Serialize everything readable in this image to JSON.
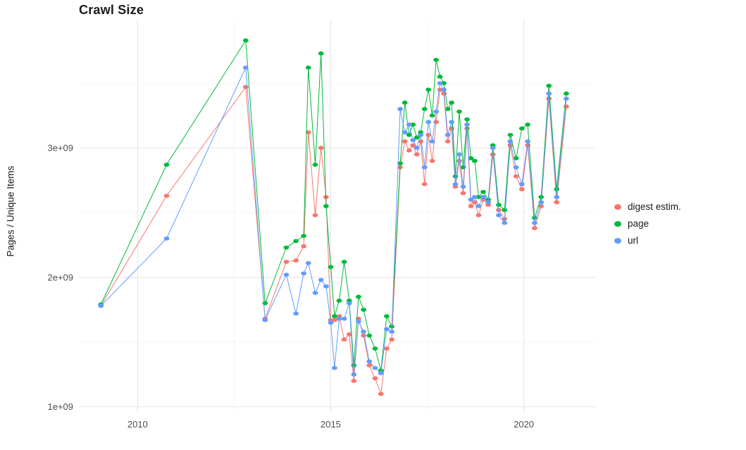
{
  "chart_data": {
    "type": "line",
    "title": "Crawl Size",
    "xlabel": "",
    "ylabel": "Pages / Unique Items",
    "legend_position": "right",
    "grid": true,
    "grid_major_color": "#e5e5e5",
    "grid_minor_color": "#f2f2f2",
    "tick_color": "#4d4d4d",
    "xlim": [
      2008.48,
      2021.85
    ],
    "ylim": [
      960000000.0,
      3990000000.0
    ],
    "x_ticks": [
      {
        "value": 2010,
        "label": "2010"
      },
      {
        "value": 2015,
        "label": "2015"
      },
      {
        "value": 2020,
        "label": "2020"
      }
    ],
    "y_ticks": [
      {
        "value": 1000000000.0,
        "label": "1e+09"
      },
      {
        "value": 2000000000.0,
        "label": "2e+09"
      },
      {
        "value": 3000000000.0,
        "label": "3e+09"
      }
    ],
    "x_minor": [
      2012.5,
      2017.5
    ],
    "y_minor": [
      1500000000.0,
      2500000000.0,
      3500000000.0
    ],
    "x": [
      2009.05,
      2010.75,
      2012.8,
      2013.3,
      2013.85,
      2014.1,
      2014.3,
      2014.42,
      2014.6,
      2014.75,
      2014.88,
      2015.0,
      2015.1,
      2015.22,
      2015.35,
      2015.48,
      2015.6,
      2015.72,
      2015.85,
      2016.0,
      2016.15,
      2016.3,
      2016.45,
      2016.58,
      2016.8,
      2016.92,
      2017.03,
      2017.13,
      2017.23,
      2017.33,
      2017.43,
      2017.53,
      2017.63,
      2017.73,
      2017.83,
      2017.93,
      2018.03,
      2018.13,
      2018.23,
      2018.33,
      2018.43,
      2018.53,
      2018.63,
      2018.73,
      2018.83,
      2018.95,
      2019.08,
      2019.2,
      2019.35,
      2019.5,
      2019.65,
      2019.8,
      2019.95,
      2020.1,
      2020.28,
      2020.45,
      2020.65,
      2020.85,
      2021.1
    ],
    "series": [
      {
        "name": "digest estim.",
        "color": "#F8766D",
        "values": [
          1780000000.0,
          2630000000.0,
          3470000000.0,
          1680000000.0,
          2120000000.0,
          2130000000.0,
          2240000000.0,
          3120000000.0,
          2480000000.0,
          3000000000.0,
          2620000000.0,
          1670000000.0,
          1670000000.0,
          1700000000.0,
          1520000000.0,
          1560000000.0,
          1200000000.0,
          1680000000.0,
          1550000000.0,
          1320000000.0,
          1220000000.0,
          1100000000.0,
          1450000000.0,
          1520000000.0,
          2850000000.0,
          3050000000.0,
          2980000000.0,
          3020000000.0,
          2950000000.0,
          3050000000.0,
          2720000000.0,
          3100000000.0,
          2900000000.0,
          3200000000.0,
          3450000000.0,
          3420000000.0,
          3050000000.0,
          3150000000.0,
          2700000000.0,
          2900000000.0,
          2650000000.0,
          3150000000.0,
          2550000000.0,
          2580000000.0,
          2480000000.0,
          2600000000.0,
          2560000000.0,
          2950000000.0,
          2520000000.0,
          2450000000.0,
          3020000000.0,
          2780000000.0,
          2680000000.0,
          3020000000.0,
          2380000000.0,
          2550000000.0,
          3380000000.0,
          2580000000.0,
          3320000000.0
        ]
      },
      {
        "name": "page",
        "color": "#00BA38",
        "values": [
          1790000000.0,
          2870000000.0,
          3830000000.0,
          1800000000.0,
          2230000000.0,
          2280000000.0,
          2320000000.0,
          3620000000.0,
          2870000000.0,
          3730000000.0,
          2550000000.0,
          2080000000.0,
          1700000000.0,
          1820000000.0,
          2120000000.0,
          1820000000.0,
          1320000000.0,
          1850000000.0,
          1750000000.0,
          1550000000.0,
          1450000000.0,
          1280000000.0,
          1700000000.0,
          1620000000.0,
          2880000000.0,
          3350000000.0,
          3100000000.0,
          3180000000.0,
          3080000000.0,
          3120000000.0,
          3300000000.0,
          3450000000.0,
          3250000000.0,
          3680000000.0,
          3550000000.0,
          3500000000.0,
          3300000000.0,
          3350000000.0,
          2780000000.0,
          3280000000.0,
          2850000000.0,
          3220000000.0,
          2920000000.0,
          2900000000.0,
          2620000000.0,
          2660000000.0,
          2600000000.0,
          3020000000.0,
          2560000000.0,
          2520000000.0,
          3100000000.0,
          2920000000.0,
          3150000000.0,
          3180000000.0,
          2460000000.0,
          2620000000.0,
          3480000000.0,
          2680000000.0,
          3420000000.0
        ]
      },
      {
        "name": "url",
        "color": "#619CFF",
        "values": [
          1780000000.0,
          2300000000.0,
          3620000000.0,
          1670000000.0,
          2020000000.0,
          1720000000.0,
          2030000000.0,
          2110000000.0,
          1880000000.0,
          1980000000.0,
          1930000000.0,
          1650000000.0,
          1300000000.0,
          1680000000.0,
          1680000000.0,
          1800000000.0,
          1250000000.0,
          1660000000.0,
          1580000000.0,
          1350000000.0,
          1300000000.0,
          1260000000.0,
          1600000000.0,
          1580000000.0,
          3300000000.0,
          3120000000.0,
          3180000000.0,
          3060000000.0,
          3000000000.0,
          3100000000.0,
          2850000000.0,
          3200000000.0,
          3050000000.0,
          3280000000.0,
          3500000000.0,
          3450000000.0,
          3100000000.0,
          3200000000.0,
          2720000000.0,
          2950000000.0,
          2700000000.0,
          3180000000.0,
          2600000000.0,
          2620000000.0,
          2550000000.0,
          2620000000.0,
          2580000000.0,
          3000000000.0,
          2480000000.0,
          2420000000.0,
          3050000000.0,
          2850000000.0,
          2720000000.0,
          3050000000.0,
          2420000000.0,
          2580000000.0,
          3420000000.0,
          2620000000.0,
          3380000000.0
        ]
      }
    ]
  }
}
